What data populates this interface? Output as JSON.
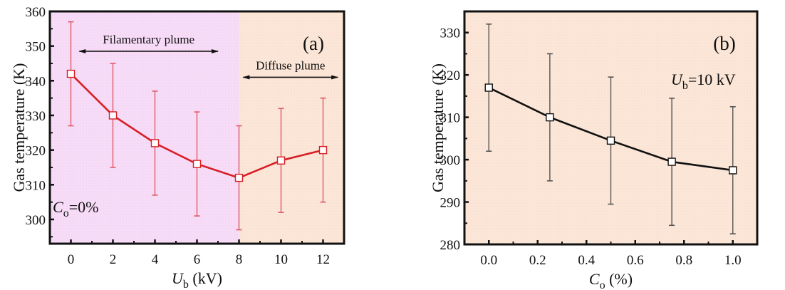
{
  "figure": {
    "colors": {
      "region_filamentary": "#f7dcf7",
      "region_diffuse": "#fbe6d8",
      "series_a": "#d61f26",
      "errorbar_a": "#e05a66",
      "series_b": "#111111",
      "errorbar_b": "#555555",
      "axis": "#111111"
    }
  },
  "chart_data": [
    {
      "type": "line",
      "panel_label": "(a)",
      "title": "",
      "xlabel": "U_b (kV)",
      "xlabel_main": "U",
      "xlabel_sub": "b",
      "xlabel_unit": " (kV)",
      "ylabel": "Gas temperature (K)",
      "xlim": [
        -1,
        13
      ],
      "ylim": [
        293,
        360
      ],
      "xticks": [
        0,
        2,
        4,
        6,
        8,
        10,
        12
      ],
      "xtick_labels": [
        "0",
        "2",
        "4",
        "6",
        "8",
        "10",
        "12"
      ],
      "yticks": [
        300,
        310,
        320,
        330,
        340,
        350,
        360
      ],
      "ytick_labels": [
        "300",
        "310",
        "320",
        "330",
        "340",
        "350",
        "360"
      ],
      "grid": false,
      "series": [
        {
          "name": "Gas temperature",
          "x": [
            0,
            2,
            4,
            6,
            8,
            10,
            12
          ],
          "y": [
            342,
            330,
            322,
            316,
            312,
            317,
            320
          ],
          "error": [
            15,
            15,
            15,
            15,
            15,
            15,
            15
          ],
          "marker": "open-square"
        }
      ],
      "regions": [
        {
          "name": "Filamentary plume",
          "x_from": -1,
          "x_to": 8
        },
        {
          "name": "Diffuse plume",
          "x_from": 8,
          "x_to": 13
        }
      ],
      "annotations": [
        {
          "text": "Filamentary plume",
          "arrow_x": [
            0.4,
            7
          ],
          "arrow_y": 348.5,
          "text_y": 352
        },
        {
          "text": "Diffuse plume",
          "arrow_x": [
            8.2,
            12.7
          ],
          "arrow_y": 341,
          "text_y": 344.5
        }
      ],
      "condition": {
        "main": "C",
        "sub": "o",
        "rest": "=0%"
      }
    },
    {
      "type": "line",
      "panel_label": "(b)",
      "title": "",
      "xlabel": "C_o (%)",
      "xlabel_main": "C",
      "xlabel_sub": "o",
      "xlabel_unit": " (%)",
      "ylabel": "Gas temperature (K)",
      "xlim": [
        -0.1,
        1.1
      ],
      "ylim": [
        280,
        335
      ],
      "xticks": [
        0.0,
        0.2,
        0.4,
        0.6,
        0.8,
        1.0
      ],
      "xtick_labels": [
        "0.0",
        "0.2",
        "0.4",
        "0.6",
        "0.8",
        "1.0"
      ],
      "yticks": [
        280,
        290,
        300,
        310,
        320,
        330
      ],
      "ytick_labels": [
        "280",
        "290",
        "300",
        "310",
        "320",
        "330"
      ],
      "grid": false,
      "series": [
        {
          "name": "Gas temperature",
          "x": [
            0.0,
            0.25,
            0.5,
            0.75,
            1.0
          ],
          "y": [
            317,
            310,
            304.5,
            299.5,
            297.5
          ],
          "error": [
            15,
            15,
            15,
            15,
            15
          ],
          "marker": "open-square"
        }
      ],
      "condition": {
        "main": "U",
        "sub": "b",
        "rest": "=10 kV"
      }
    }
  ]
}
